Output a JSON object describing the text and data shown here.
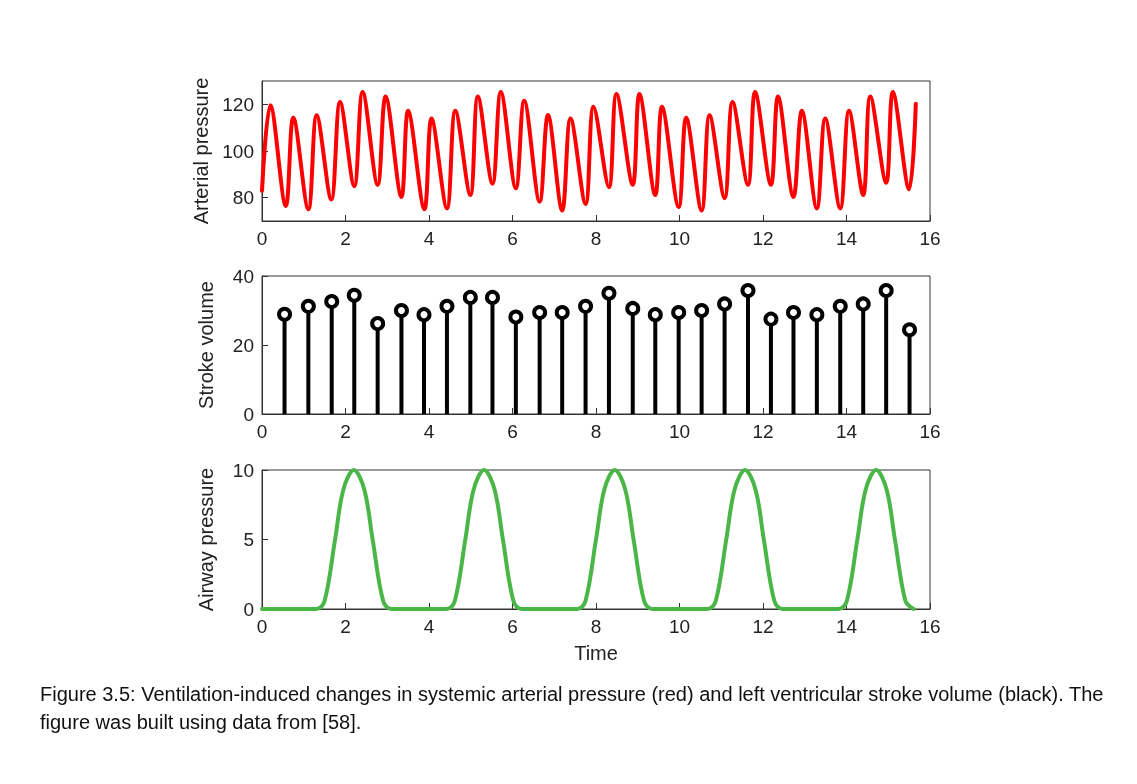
{
  "chart_data": [
    {
      "type": "line",
      "ylabel": "Arterial pressure",
      "xlim": [
        0,
        16
      ],
      "xticks": [
        0,
        2,
        4,
        6,
        8,
        10,
        12,
        14,
        16
      ],
      "ylim": [
        70,
        130
      ],
      "yticks": [
        80,
        100,
        120
      ],
      "grid": false,
      "line_style": "solid",
      "marker": "none",
      "x": [
        0,
        0.2,
        0.57,
        0.75,
        1.11,
        1.31,
        1.66,
        1.87,
        2.21,
        2.41,
        2.77,
        2.96,
        3.34,
        3.5,
        3.89,
        4.06,
        4.43,
        4.63,
        4.99,
        5.17,
        5.52,
        5.72,
        6.08,
        6.28,
        6.65,
        6.85,
        7.19,
        7.39,
        7.75,
        7.94,
        8.31,
        8.49,
        8.88,
        9.04,
        9.42,
        9.58,
        9.98,
        10.16,
        10.53,
        10.72,
        11.08,
        11.27,
        11.64,
        11.81,
        12.19,
        12.36,
        12.73,
        12.93,
        13.29,
        13.49,
        13.85,
        14.06,
        14.4,
        14.57,
        14.95,
        15.11,
        15.5,
        15.66
      ],
      "series": [
        {
          "color": "#ff0000",
          "values": [
            83,
            119.6,
            76.4,
            114.3,
            75,
            115.3,
            79.2,
            121,
            84.9,
            125.3,
            85.5,
            123.4,
            80.3,
            117.2,
            75,
            113.9,
            75.4,
            117.2,
            81.1,
            123.4,
            86,
            125.3,
            84,
            121.5,
            78.3,
            115.4,
            74.5,
            113.9,
            77.3,
            119,
            84.5,
            124.4,
            85.5,
            124.4,
            81.1,
            119,
            76,
            114.3,
            74.5,
            115.3,
            79.8,
            121,
            85.5,
            125.3,
            85.5,
            123.4,
            80.3,
            117.2,
            75.4,
            113.9,
            75.4,
            117.2,
            81.1,
            123.4,
            86.4,
            125.3,
            83.6,
            120.2
          ]
        }
      ]
    },
    {
      "type": "lollipop",
      "ylabel": "Stroke volume",
      "xlim": [
        0,
        16
      ],
      "xticks": [
        0,
        2,
        4,
        6,
        8,
        10,
        12,
        14,
        16
      ],
      "ylim": [
        0,
        40
      ],
      "yticks": [
        0,
        20,
        40
      ],
      "grid": false,
      "marker": "circle",
      "x": [
        0.54,
        1.11,
        1.67,
        2.21,
        2.77,
        3.34,
        3.88,
        4.43,
        4.99,
        5.52,
        6.08,
        6.65,
        7.19,
        7.75,
        8.31,
        8.88,
        9.42,
        9.98,
        10.53,
        11.08,
        11.64,
        12.19,
        12.73,
        13.29,
        13.85,
        14.4,
        14.95,
        15.51
      ],
      "series": [
        {
          "color": "#000000",
          "values": [
            28.9,
            31.2,
            32.6,
            34.4,
            26.2,
            30,
            28.8,
            31.2,
            33.8,
            33.8,
            28.1,
            29.4,
            29.4,
            31.2,
            35,
            30.6,
            28.8,
            29.4,
            30,
            31.9,
            35.8,
            27.5,
            29.4,
            28.8,
            31.2,
            31.9,
            35.8,
            24.4
          ]
        }
      ]
    },
    {
      "type": "line",
      "ylabel": "Airway pressure",
      "xlabel": "Time",
      "xlim": [
        0,
        16
      ],
      "xticks": [
        0,
        2,
        4,
        6,
        8,
        10,
        12,
        14,
        16
      ],
      "ylim": [
        0,
        10
      ],
      "yticks": [
        0,
        5,
        10
      ],
      "grid": false,
      "line_style": "solid",
      "marker": "none",
      "x": [
        0,
        1.3,
        1.5,
        1.75,
        1.95,
        2.2,
        2.45,
        2.65,
        2.9,
        3.1,
        4.42,
        4.62,
        4.87,
        5.07,
        5.32,
        5.57,
        5.77,
        6.02,
        6.22,
        7.55,
        7.75,
        8.0,
        8.2,
        8.45,
        8.7,
        8.9,
        9.15,
        9.35,
        10.67,
        10.87,
        11.12,
        11.32,
        11.57,
        11.82,
        12.02,
        12.27,
        12.47,
        13.81,
        14.01,
        14.26,
        14.46,
        14.71,
        14.96,
        15.16,
        15.41,
        15.61
      ],
      "series": [
        {
          "color": "#4bb648",
          "values": [
            0,
            0,
            0.6,
            5,
            8.6,
            10,
            8.6,
            5,
            0.6,
            0,
            0,
            0.6,
            5,
            8.6,
            10,
            8.6,
            5,
            0.6,
            0,
            0,
            0.6,
            5,
            8.6,
            10,
            8.6,
            5,
            0.6,
            0,
            0,
            0.6,
            5,
            8.6,
            10,
            8.6,
            5,
            0.6,
            0,
            0,
            0.6,
            5,
            8.6,
            10,
            8.6,
            5,
            0.6,
            0
          ]
        }
      ],
      "annotations": [
        "Figure 3.5: Ventilation-induced changes in systemic arterial pressure (red) and left ventricular stroke volume (black). The figure was built using data from [58]."
      ]
    }
  ]
}
